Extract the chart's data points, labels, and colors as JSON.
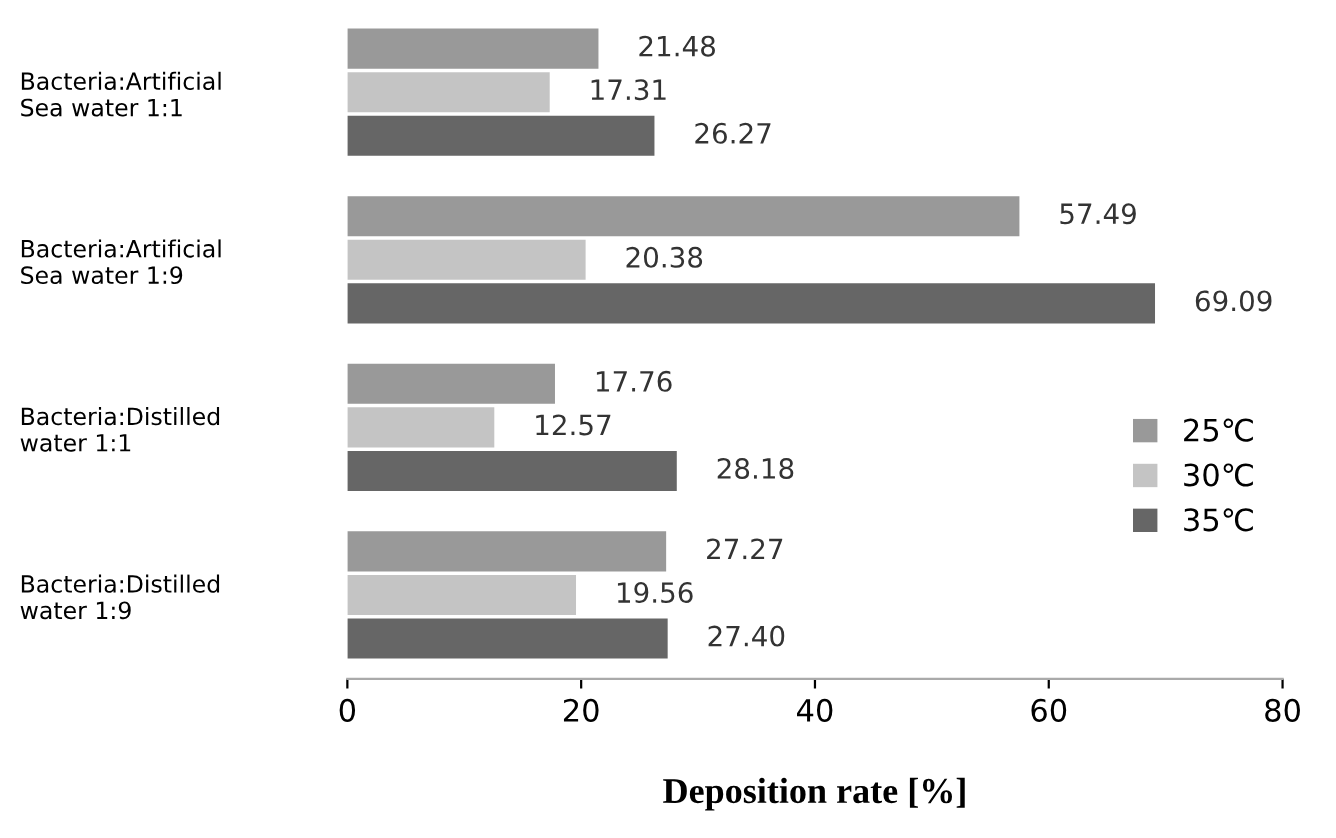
{
  "chart_data": {
    "type": "bar",
    "orientation": "horizontal",
    "xlabel": "Deposition rate [%]",
    "categories": [
      "Bacteria:Artificial\nSea water 1:1",
      "Bacteria:Artificial\nSea water 1:9",
      "Bacteria:Distilled\nwater 1:1",
      "Bacteria:Distilled\nwater 1:9"
    ],
    "series": [
      {
        "name": "25℃",
        "color": "#999999",
        "values": [
          21.48,
          57.49,
          17.76,
          27.27
        ],
        "value_labels": [
          "21.48",
          "57.49",
          "17.76",
          "27.27"
        ]
      },
      {
        "name": "30℃",
        "color": "#c4c4c4",
        "values": [
          17.31,
          20.38,
          12.57,
          19.56
        ],
        "value_labels": [
          "17.31",
          "20.38",
          "12.57",
          "19.56"
        ]
      },
      {
        "name": "35℃",
        "color": "#666666",
        "values": [
          26.27,
          69.09,
          28.18,
          27.4
        ],
        "value_labels": [
          "26.27",
          "69.09",
          "28.18",
          "27.40"
        ]
      }
    ],
    "xlim": [
      0,
      80
    ],
    "xticks": [
      0,
      20,
      40,
      60,
      80
    ],
    "grid": false,
    "legend": "right"
  }
}
